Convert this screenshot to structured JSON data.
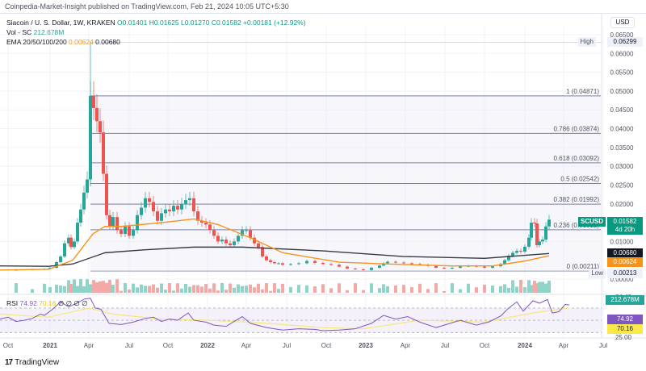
{
  "header": {
    "publish_line": "Coinpedia-Market-Insight published on TradingView.com, Feb 21, 2024 10:05 UTC+5:30"
  },
  "legend": {
    "symbol_line": "Siacoin / U. S. Dollar, 1W, KRAKEN",
    "open": "O0.01401",
    "high": "H0.01625",
    "low": "L0.01270",
    "close": "C0.01582",
    "change": "+0.00181 (+12.92%)",
    "vol_label": "Vol - SC",
    "vol_value": "212.678M",
    "ema_label": "EMA 20/50/100/200",
    "ema20_value": "0.00624",
    "ema200_value": "0.00680",
    "rsi_label": "RSI",
    "rsi_value": "74.92",
    "rsi_ma_value": "70.16",
    "rsi_extra": "∅ ∅ ∅ ∅"
  },
  "price_axis": {
    "currency": "USD",
    "ticks": [
      "0.06500",
      "0.06000",
      "0.05500",
      "0.05000",
      "0.04500",
      "0.04000",
      "0.03500",
      "0.03000",
      "0.02500",
      "0.02000",
      "0.01000",
      "0.00000"
    ],
    "high_label": "High",
    "high_value": "0.06299",
    "low_label": "Low",
    "low_value": "0.00213",
    "last_symbol": "SCUSD",
    "last_price": "0.01582",
    "countdown": "4d 20h",
    "ema200_tag": "0.00680",
    "ema20_tag": "0.00624",
    "volume_tag": "212.678M"
  },
  "rsi_axis": {
    "ticks": [
      "84.48",
      "38.32",
      "25.00"
    ],
    "rsi_tag": "74.92",
    "rsi_ma_tag": "70.16"
  },
  "fib_levels": [
    {
      "label": "1 (0.04871)",
      "value": 0.04871
    },
    {
      "label": "0.786 (0.03874)",
      "value": 0.03874
    },
    {
      "label": "0.618 (0.03092)",
      "value": 0.03092
    },
    {
      "label": "0.5 (0.02542)",
      "value": 0.02542
    },
    {
      "label": "0.382 (0.01992)",
      "value": 0.01992
    },
    {
      "label": "0.236 (0.01312)",
      "value": 0.01312
    },
    {
      "label": "0 (0.00211)",
      "value": 0.00211
    }
  ],
  "time_axis": {
    "labels": [
      "Oct",
      "2021",
      "Apr",
      "Jul",
      "Oct",
      "2022",
      "Apr",
      "Jul",
      "Oct",
      "2023",
      "Apr",
      "Jul",
      "Oct",
      "2024",
      "Apr",
      "Jul"
    ]
  },
  "footer": {
    "logo": "17",
    "brand": "TradingView"
  },
  "colors": {
    "up": "#26a69a",
    "down": "#ef5350",
    "ema20": "#f7931a",
    "ema200": "#363a45",
    "fib": "#7b7fa8",
    "rsi": "#7e57c2",
    "rsi_ma": "#f5e77a",
    "last_price_bg": "#089981"
  },
  "chart_data": {
    "type": "candlestick",
    "title": "Siacoin / U. S. Dollar, 1W, KRAKEN",
    "xlabel": "",
    "ylabel": "USD",
    "ylim": [
      0,
      0.065
    ],
    "x_ticks": [
      "Oct 2020",
      "2021",
      "Apr 2021",
      "Jul 2021",
      "Oct 2021",
      "2022",
      "Apr 2022",
      "Jul 2022",
      "Oct 2022",
      "2023",
      "Apr 2023",
      "Jul 2023",
      "Oct 2023",
      "2024",
      "Apr 2024",
      "Jul 2024"
    ],
    "ohlc_last": {
      "open": 0.01401,
      "high": 0.01625,
      "low": 0.0127,
      "close": 0.01582,
      "change": 0.00181,
      "change_pct": 12.92
    },
    "all_time_high_in_view": 0.06299,
    "low_in_view": 0.00213,
    "approx_close_series": {
      "dates": [
        "2020-10",
        "2020-12",
        "2021-01",
        "2021-02",
        "2021-03",
        "2021-04",
        "2021-05",
        "2021-06",
        "2021-07",
        "2021-08",
        "2021-09",
        "2021-10",
        "2021-11",
        "2021-12",
        "2022-01",
        "2022-02",
        "2022-03",
        "2022-04",
        "2022-05",
        "2022-06",
        "2022-09",
        "2022-12",
        "2023-03",
        "2023-06",
        "2023-09",
        "2023-10",
        "2023-11",
        "2023-12",
        "2024-01",
        "2024-02"
      ],
      "values": [
        0.0025,
        0.003,
        0.0045,
        0.0095,
        0.02,
        0.0487,
        0.025,
        0.013,
        0.011,
        0.016,
        0.0135,
        0.015,
        0.018,
        0.013,
        0.0125,
        0.01,
        0.012,
        0.007,
        0.0045,
        0.0035,
        0.003,
        0.0022,
        0.0048,
        0.0035,
        0.003,
        0.0035,
        0.007,
        0.009,
        0.015,
        0.0158
      ]
    },
    "indicators": {
      "ema20": 0.00624,
      "ema200": 0.0068,
      "volume_last": "212.678M",
      "rsi": 74.92,
      "rsi_ma": 70.16,
      "rsi_bands": [
        70,
        50,
        30
      ]
    },
    "fibonacci": [
      {
        "ratio": 1,
        "price": 0.04871
      },
      {
        "ratio": 0.786,
        "price": 0.03874
      },
      {
        "ratio": 0.618,
        "price": 0.03092
      },
      {
        "ratio": 0.5,
        "price": 0.02542
      },
      {
        "ratio": 0.382,
        "price": 0.01992
      },
      {
        "ratio": 0.236,
        "price": 0.01312
      },
      {
        "ratio": 0,
        "price": 0.00211
      }
    ],
    "grid": true,
    "legend_position": "top-left"
  }
}
